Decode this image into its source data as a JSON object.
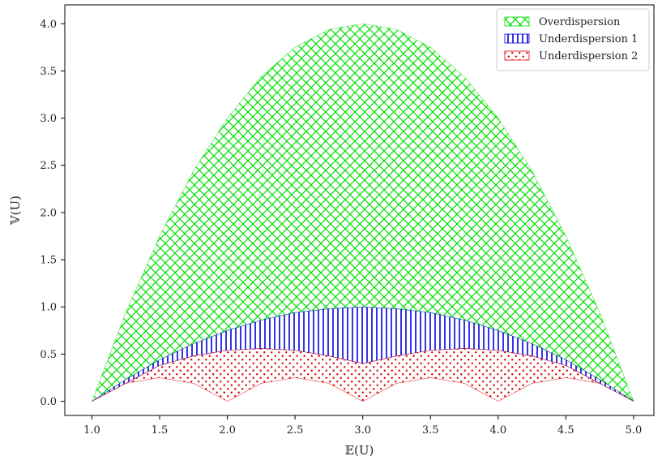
{
  "chart_data": {
    "type": "area",
    "title": "",
    "xlabel": "𝔼(U)",
    "ylabel": "𝕍(U)",
    "xlim": [
      0.8,
      5.15
    ],
    "ylim": [
      -0.15,
      4.2
    ],
    "x_ticks": [
      1.0,
      1.5,
      2.0,
      2.5,
      3.0,
      3.5,
      4.0,
      4.5,
      5.0
    ],
    "y_ticks": [
      0.0,
      0.5,
      1.0,
      1.5,
      2.0,
      2.5,
      3.0,
      3.5,
      4.0
    ],
    "x_tick_labels": [
      "1.0",
      "1.5",
      "2.0",
      "2.5",
      "3.0",
      "3.5",
      "4.0",
      "4.5",
      "5.0"
    ],
    "y_tick_labels": [
      "0.0",
      "0.5",
      "1.0",
      "1.5",
      "2.0",
      "2.5",
      "3.0",
      "3.5",
      "4.0"
    ],
    "grid": false,
    "legend_position": "top-right",
    "series": [
      {
        "name": "Overdispersion",
        "color": "#00e000",
        "hatch": "crosshatch",
        "x": [
          1.0,
          1.25,
          1.5,
          1.75,
          2.0,
          2.25,
          2.5,
          2.75,
          3.0,
          3.25,
          3.5,
          3.75,
          4.0,
          4.25,
          4.5,
          4.75,
          5.0
        ],
        "upper": [
          0.0,
          0.94,
          1.75,
          2.44,
          3.0,
          3.44,
          3.75,
          3.94,
          4.0,
          3.94,
          3.75,
          3.44,
          3.0,
          2.44,
          1.75,
          0.94,
          0.0
        ],
        "lower": [
          0.0,
          0.23,
          0.44,
          0.61,
          0.75,
          0.86,
          0.94,
          0.98,
          1.0,
          0.98,
          0.94,
          0.86,
          0.75,
          0.61,
          0.44,
          0.23,
          0.0
        ]
      },
      {
        "name": "Underdispersion 1",
        "color": "#0000e0",
        "hatch": "vertical",
        "x": [
          1.0,
          1.25,
          1.5,
          1.75,
          2.0,
          2.25,
          2.5,
          2.75,
          3.0,
          3.25,
          3.5,
          3.75,
          4.0,
          4.25,
          4.5,
          4.75,
          5.0
        ],
        "upper": [
          0.0,
          0.23,
          0.44,
          0.61,
          0.75,
          0.86,
          0.94,
          0.98,
          1.0,
          0.98,
          0.94,
          0.86,
          0.75,
          0.61,
          0.44,
          0.23,
          0.0
        ],
        "lower": [
          0.0,
          0.19,
          0.38,
          0.48,
          0.54,
          0.56,
          0.54,
          0.48,
          0.4,
          0.48,
          0.54,
          0.56,
          0.54,
          0.48,
          0.38,
          0.19,
          0.0
        ]
      },
      {
        "name": "Underdispersion 2",
        "color": "#e00000",
        "hatch": "dots",
        "x": [
          1.0,
          1.25,
          1.5,
          1.75,
          2.0,
          2.25,
          2.5,
          2.75,
          3.0,
          3.25,
          3.5,
          3.75,
          4.0,
          4.25,
          4.5,
          4.75,
          5.0
        ],
        "upper": [
          0.0,
          0.19,
          0.38,
          0.48,
          0.54,
          0.56,
          0.54,
          0.48,
          0.4,
          0.48,
          0.54,
          0.56,
          0.54,
          0.48,
          0.38,
          0.19,
          0.0
        ],
        "lower": [
          0.0,
          0.19,
          0.25,
          0.19,
          0.0,
          0.19,
          0.25,
          0.19,
          0.0,
          0.19,
          0.25,
          0.19,
          0.0,
          0.19,
          0.25,
          0.19,
          0.0
        ]
      }
    ]
  }
}
